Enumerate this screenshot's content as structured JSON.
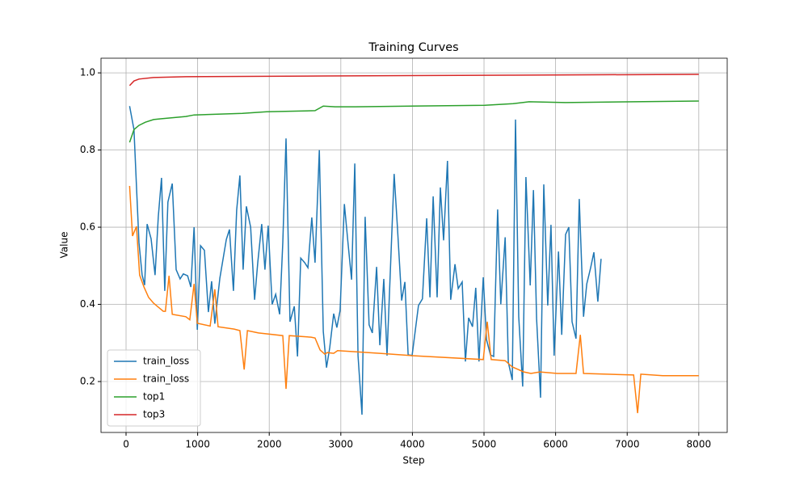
{
  "chart_data": {
    "type": "line",
    "title": "Training Curves",
    "x_label": "Step",
    "y_label": "Value",
    "xlim": [
      -350,
      8397
    ],
    "ylim": [
      0.068,
      1.038
    ],
    "xticks": [
      0,
      1000,
      2000,
      3000,
      4000,
      5000,
      6000,
      7000,
      8000
    ],
    "yticks": [
      0.2,
      0.4,
      0.6,
      0.8,
      {
        "value": 1,
        "label": "1.0"
      }
    ],
    "grid": true,
    "legend": "lower left",
    "series": [
      {
        "name": "train_loss",
        "color": "#1f77b4",
        "x": [
          50,
          110,
          180,
          225,
          260,
          295,
          350,
          405,
          450,
          495,
          540,
          585,
          645,
          700,
          755,
          800,
          860,
          905,
          950,
          995,
          1040,
          1095,
          1150,
          1195,
          1240,
          1310,
          1400,
          1445,
          1500,
          1545,
          1590,
          1635,
          1680,
          1740,
          1795,
          1840,
          1895,
          1940,
          1985,
          2040,
          2090,
          2145,
          2190,
          2235,
          2290,
          2350,
          2395,
          2440,
          2495,
          2540,
          2595,
          2640,
          2700,
          2755,
          2800,
          2845,
          2900,
          2945,
          2990,
          3050,
          3095,
          3150,
          3195,
          3240,
          3295,
          3340,
          3395,
          3440,
          3500,
          3545,
          3600,
          3645,
          3745,
          3790,
          3850,
          3895,
          3940,
          3995,
          4085,
          4140,
          4200,
          4245,
          4290,
          4345,
          4390,
          4435,
          4490,
          4535,
          4595,
          4640,
          4695,
          4740,
          4785,
          4840,
          4885,
          4930,
          4990,
          5035,
          5090,
          5135,
          5190,
          5235,
          5295,
          5340,
          5395,
          5440,
          5485,
          5540,
          5585,
          5645,
          5690,
          5735,
          5790,
          5835,
          5890,
          5935,
          5980,
          6040,
          6085,
          6140,
          6185,
          6230,
          6285,
          6330,
          6390,
          6435,
          6490,
          6535,
          6590,
          6635
        ],
        "values": [
          0.914,
          0.853,
          0.56,
          0.476,
          0.45,
          0.608,
          0.57,
          0.476,
          0.627,
          0.728,
          0.435,
          0.665,
          0.713,
          0.49,
          0.466,
          0.479,
          0.474,
          0.445,
          0.6,
          0.334,
          0.552,
          0.54,
          0.38,
          0.46,
          0.35,
          0.468,
          0.568,
          0.594,
          0.435,
          0.644,
          0.734,
          0.49,
          0.654,
          0.6,
          0.412,
          0.508,
          0.608,
          0.49,
          0.604,
          0.4,
          0.426,
          0.374,
          0.56,
          0.83,
          0.355,
          0.395,
          0.265,
          0.52,
          0.508,
          0.495,
          0.625,
          0.508,
          0.8,
          0.33,
          0.236,
          0.288,
          0.376,
          0.34,
          0.384,
          0.66,
          0.57,
          0.464,
          0.765,
          0.267,
          0.114,
          0.627,
          0.347,
          0.326,
          0.497,
          0.294,
          0.466,
          0.267,
          0.738,
          0.602,
          0.41,
          0.458,
          0.27,
          0.267,
          0.397,
          0.414,
          0.623,
          0.418,
          0.68,
          0.418,
          0.703,
          0.566,
          0.772,
          0.412,
          0.504,
          0.441,
          0.458,
          0.252,
          0.365,
          0.342,
          0.443,
          0.252,
          0.47,
          0.309,
          0.269,
          0.265,
          0.646,
          0.4,
          0.574,
          0.25,
          0.204,
          0.879,
          0.368,
          0.187,
          0.73,
          0.449,
          0.696,
          0.363,
          0.158,
          0.711,
          0.397,
          0.606,
          0.267,
          0.537,
          0.321,
          0.581,
          0.6,
          0.355,
          0.311,
          0.673,
          0.368,
          0.453,
          0.495,
          0.535,
          0.407,
          0.518
        ]
      },
      {
        "name": "train_loss",
        "color": "#ff7f0e",
        "x": [
          50,
          90,
          145,
          190,
          250,
          315,
          385,
          450,
          520,
          550,
          600,
          645,
          835,
          890,
          950,
          995,
          1175,
          1240,
          1285,
          1510,
          1590,
          1650,
          1695,
          1850,
          2190,
          2235,
          2280,
          2585,
          2640,
          2710,
          2775,
          2810,
          2900,
          2955,
          3545,
          3995,
          4990,
          5045,
          5100,
          5295,
          5395,
          5555,
          5655,
          5780,
          6025,
          6285,
          6345,
          6390,
          7090,
          7145,
          7190,
          7495,
          8000
        ],
        "values": [
          0.707,
          0.577,
          0.602,
          0.476,
          0.445,
          0.418,
          0.403,
          0.393,
          0.382,
          0.382,
          0.474,
          0.374,
          0.368,
          0.36,
          0.453,
          0.351,
          0.344,
          0.439,
          0.342,
          0.336,
          0.332,
          0.231,
          0.332,
          0.326,
          0.319,
          0.181,
          0.319,
          0.315,
          0.313,
          0.282,
          0.271,
          0.275,
          0.273,
          0.28,
          0.273,
          0.267,
          0.257,
          0.355,
          0.257,
          0.254,
          0.238,
          0.225,
          0.221,
          0.225,
          0.221,
          0.221,
          0.321,
          0.221,
          0.217,
          0.118,
          0.219,
          0.215,
          0.215
        ]
      },
      {
        "name": "top1",
        "color": "#2ca02c",
        "x": [
          50,
          110,
          180,
          270,
          385,
          495,
          835,
          950,
          1625,
          1965,
          2640,
          2755,
          2920,
          3205,
          5010,
          5405,
          5630,
          6140,
          8000
        ],
        "values": [
          0.82,
          0.853,
          0.864,
          0.872,
          0.879,
          0.881,
          0.887,
          0.891,
          0.895,
          0.899,
          0.902,
          0.914,
          0.912,
          0.912,
          0.916,
          0.92,
          0.925,
          0.923,
          0.927
        ]
      },
      {
        "name": "top3",
        "color": "#d62728",
        "x": [
          50,
          110,
          180,
          385,
          835,
          2755,
          5350,
          8000
        ],
        "values": [
          0.967,
          0.979,
          0.984,
          0.988,
          0.99,
          0.992,
          0.994,
          0.996
        ]
      }
    ]
  }
}
